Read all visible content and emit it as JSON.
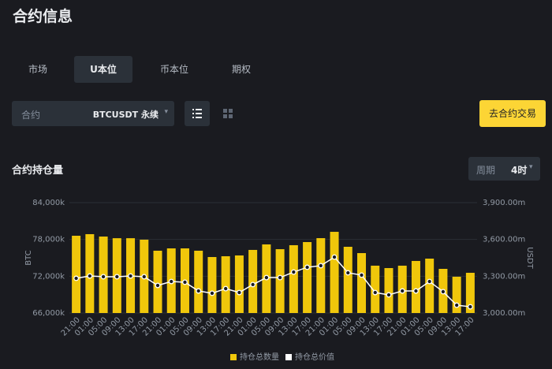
{
  "header": {
    "title": "合约信息"
  },
  "tabs": [
    "市场",
    "U本位",
    "币本位",
    "期权"
  ],
  "filter": {
    "label": "合约",
    "value": "BTCUSDT 永续"
  },
  "button": "去合约交易",
  "section": {
    "title": "合约持仓量",
    "period_label": "周期",
    "period": "4时"
  },
  "chart_data": {
    "type": "bar",
    "ylabel": "BTC",
    "y2label": "USDT",
    "categories": [
      "21:00",
      "01:00",
      "05:00",
      "09:00",
      "13:00",
      "17:00",
      "21:00",
      "01:00",
      "05:00",
      "09:00",
      "13:00",
      "17:00",
      "21:00",
      "01:00",
      "05:00",
      "09:00",
      "13:00",
      "17:00",
      "21:00",
      "01:00",
      "05:00",
      "09:00",
      "13:00",
      "17:00",
      "21:00",
      "01:00",
      "05:00",
      "09:00",
      "13:00",
      "17:00"
    ],
    "series": [
      {
        "name": "持仓总数量",
        "color": "#f0c70b",
        "type": "bar",
        "values": [
          78600,
          78860,
          78470,
          78200,
          78200,
          77960,
          76160,
          76540,
          76540,
          76160,
          75130,
          75260,
          75390,
          76290,
          77190,
          76410,
          77060,
          77570,
          78210,
          79240,
          76800,
          75770,
          73720,
          73330,
          73720,
          74490,
          74870,
          73200,
          71920,
          72560
        ]
      },
      {
        "name": "持仓总价值",
        "color": "#ffffff",
        "type": "line",
        "axis": "y2",
        "values": [
          3283,
          3302,
          3296,
          3296,
          3302,
          3296,
          3225,
          3257,
          3251,
          3180,
          3161,
          3199,
          3167,
          3232,
          3289,
          3289,
          3334,
          3373,
          3386,
          3456,
          3328,
          3309,
          3167,
          3148,
          3180,
          3180,
          3257,
          3174,
          3064,
          3051
        ]
      }
    ],
    "ylim": [
      66000,
      84000
    ],
    "yticks": [
      {
        "value": 66000,
        "label": "66,000k"
      },
      {
        "value": 72000,
        "label": "72,000k"
      },
      {
        "value": 78000,
        "label": "78,000k"
      },
      {
        "value": 84000,
        "label": "84,000k"
      }
    ],
    "y2lim": [
      3000,
      3900
    ],
    "y2ticks": [
      {
        "value": 3000,
        "label": "3,000.00m"
      },
      {
        "value": 3300,
        "label": "3,300.00m"
      },
      {
        "value": 3600,
        "label": "3,600.00m"
      },
      {
        "value": 3900,
        "label": "3,900.00m"
      }
    ],
    "grid": true
  }
}
